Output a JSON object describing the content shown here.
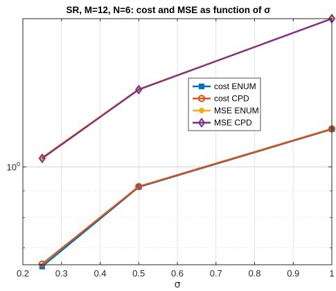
{
  "chart_data": {
    "type": "line",
    "title": "SR, M=12, N=6: cost and MSE as function of σ",
    "xlabel": "σ",
    "ylabel": "",
    "x": [
      0.25,
      0.5,
      1
    ],
    "xlim": [
      0.2,
      1
    ],
    "ylim": [
      0.65,
      1.92
    ],
    "yscale": "log",
    "xticks": [
      0.2,
      0.3,
      0.4,
      0.5,
      0.6,
      0.7,
      0.8,
      0.9,
      1
    ],
    "xtick_labels": [
      "0.2",
      "0.3",
      "0.4",
      "0.5",
      "0.6",
      "0.7",
      "0.8",
      "0.9",
      "1"
    ],
    "ytick_base": "10",
    "ytick_exp": "0",
    "ytick_value": 1,
    "grid": true,
    "legend_position": "inside-right",
    "series": [
      {
        "name": "cost ENUM",
        "values": [
          0.645,
          0.915,
          1.18
        ],
        "color": "#0072BD",
        "marker": "square"
      },
      {
        "name": "cost CPD",
        "values": [
          0.652,
          0.917,
          1.182
        ],
        "color": "#D95319",
        "marker": "circle"
      },
      {
        "name": "MSE ENUM",
        "values": [
          1.042,
          1.408,
          1.92
        ],
        "color": "#EDB120",
        "marker": "dot"
      },
      {
        "name": "MSE CPD",
        "values": [
          1.038,
          1.405,
          1.92
        ],
        "color": "#7E2F8E",
        "marker": "diamond"
      }
    ]
  }
}
